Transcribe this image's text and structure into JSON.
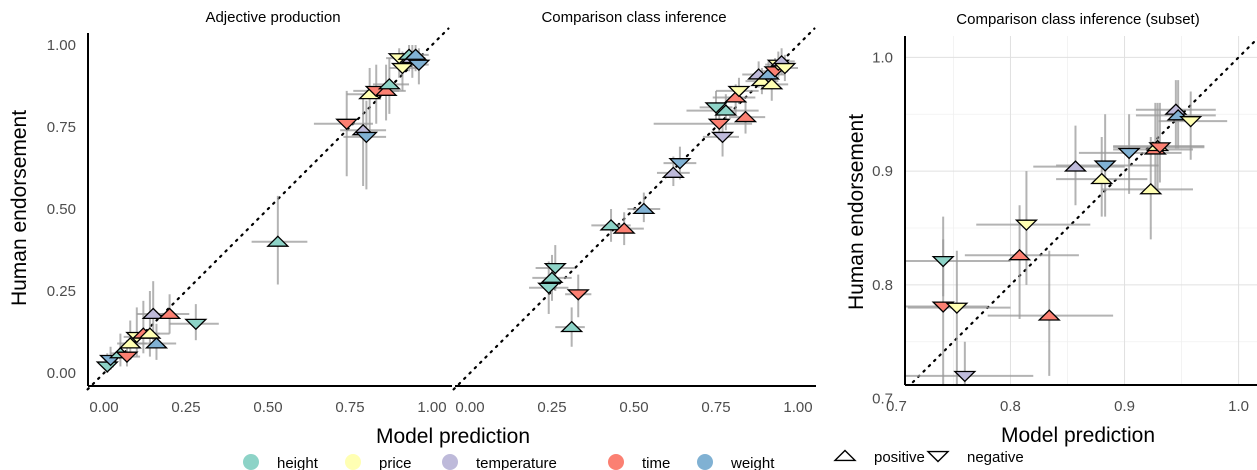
{
  "colors": {
    "height": "#8DD3C7",
    "price": "#FFFFB3",
    "temperature": "#BEBADA",
    "time": "#FB8072",
    "weight": "#80B1D3",
    "errorbar": "#999999"
  },
  "legend": {
    "colors": [
      {
        "label": "height",
        "color": "#8DD3C7"
      },
      {
        "label": "price",
        "color": "#FFFFB3"
      },
      {
        "label": "temperature",
        "color": "#BEBADA"
      },
      {
        "label": "time",
        "color": "#FB8072"
      },
      {
        "label": "weight",
        "color": "#80B1D3"
      }
    ],
    "shapes": [
      {
        "label": "positive",
        "shape": "triangle-up"
      },
      {
        "label": "negative",
        "shape": "triangle-down"
      }
    ]
  },
  "chart_data": [
    {
      "type": "scatter",
      "title": "Adjective production",
      "xlabel": "Model prediction",
      "ylabel": "Human endorsement",
      "xlim": [
        0,
        1
      ],
      "ylim": [
        0,
        1
      ],
      "xticks": [
        "0.00",
        "0.25",
        "0.50",
        "0.75",
        "1.00"
      ],
      "yticks": [
        "0.00",
        "0.25",
        "0.50",
        "0.75",
        "1.00"
      ],
      "grid": false,
      "diagonal": true,
      "points": [
        {
          "x": 0.01,
          "y": 0.02,
          "xerr": [
            0.0,
            0.03
          ],
          "yerr": [
            0.0,
            0.06
          ],
          "cat": "height",
          "pol": "negative"
        },
        {
          "x": 0.02,
          "y": 0.04,
          "xerr": [
            0.0,
            0.04
          ],
          "yerr": [
            0.01,
            0.08
          ],
          "cat": "weight",
          "pol": "negative"
        },
        {
          "x": 0.05,
          "y": 0.06,
          "xerr": [
            0.02,
            0.09
          ],
          "yerr": [
            0.02,
            0.12
          ],
          "cat": "height",
          "pol": "positive"
        },
        {
          "x": 0.07,
          "y": 0.05,
          "xerr": [
            0.04,
            0.11
          ],
          "yerr": [
            0.02,
            0.1
          ],
          "cat": "time",
          "pol": "negative"
        },
        {
          "x": 0.08,
          "y": 0.09,
          "xerr": [
            0.04,
            0.13
          ],
          "yerr": [
            0.04,
            0.16
          ],
          "cat": "price",
          "pol": "positive"
        },
        {
          "x": 0.1,
          "y": 0.11,
          "xerr": [
            0.06,
            0.15
          ],
          "yerr": [
            0.05,
            0.2
          ],
          "cat": "price",
          "pol": "negative"
        },
        {
          "x": 0.12,
          "y": 0.12,
          "xerr": [
            0.07,
            0.17
          ],
          "yerr": [
            0.06,
            0.22
          ],
          "cat": "time",
          "pol": "positive"
        },
        {
          "x": 0.14,
          "y": 0.12,
          "xerr": [
            0.08,
            0.2
          ],
          "yerr": [
            0.05,
            0.25
          ],
          "cat": "price",
          "pol": "positive"
        },
        {
          "x": 0.15,
          "y": 0.18,
          "xerr": [
            0.1,
            0.21
          ],
          "yerr": [
            0.1,
            0.28
          ],
          "cat": "temperature",
          "pol": "positive"
        },
        {
          "x": 0.16,
          "y": 0.09,
          "xerr": [
            0.1,
            0.22
          ],
          "yerr": [
            0.04,
            0.15
          ],
          "cat": "weight",
          "pol": "positive"
        },
        {
          "x": 0.2,
          "y": 0.18,
          "xerr": [
            0.14,
            0.26
          ],
          "yerr": [
            0.12,
            0.24
          ],
          "cat": "time",
          "pol": "positive"
        },
        {
          "x": 0.28,
          "y": 0.15,
          "xerr": [
            0.2,
            0.35
          ],
          "yerr": [
            0.1,
            0.21
          ],
          "cat": "height",
          "pol": "negative"
        },
        {
          "x": 0.53,
          "y": 0.4,
          "xerr": [
            0.45,
            0.62
          ],
          "yerr": [
            0.27,
            0.54
          ],
          "cat": "height",
          "pol": "positive"
        },
        {
          "x": 0.74,
          "y": 0.76,
          "xerr": [
            0.64,
            0.82
          ],
          "yerr": [
            0.6,
            0.86
          ],
          "cat": "time",
          "pol": "negative"
        },
        {
          "x": 0.79,
          "y": 0.74,
          "xerr": [
            0.72,
            0.86
          ],
          "yerr": [
            0.57,
            0.84
          ],
          "cat": "temperature",
          "pol": "positive"
        },
        {
          "x": 0.8,
          "y": 0.72,
          "xerr": [
            0.73,
            0.86
          ],
          "yerr": [
            0.56,
            0.83
          ],
          "cat": "weight",
          "pol": "negative"
        },
        {
          "x": 0.81,
          "y": 0.85,
          "xerr": [
            0.74,
            0.87
          ],
          "yerr": [
            0.74,
            0.93
          ],
          "cat": "price",
          "pol": "positive"
        },
        {
          "x": 0.83,
          "y": 0.86,
          "xerr": [
            0.76,
            0.9
          ],
          "yerr": [
            0.76,
            0.94
          ],
          "cat": "time",
          "pol": "negative"
        },
        {
          "x": 0.86,
          "y": 0.86,
          "xerr": [
            0.8,
            0.92
          ],
          "yerr": [
            0.77,
            0.94
          ],
          "cat": "time",
          "pol": "positive"
        },
        {
          "x": 0.87,
          "y": 0.88,
          "xerr": [
            0.82,
            0.93
          ],
          "yerr": [
            0.79,
            0.96
          ],
          "cat": "height",
          "pol": "positive"
        },
        {
          "x": 0.9,
          "y": 0.96,
          "xerr": [
            0.86,
            0.95
          ],
          "yerr": [
            0.9,
            0.99
          ],
          "cat": "price",
          "pol": "negative"
        },
        {
          "x": 0.91,
          "y": 0.93,
          "xerr": [
            0.87,
            0.96
          ],
          "yerr": [
            0.86,
            0.98
          ],
          "cat": "price",
          "pol": "negative"
        },
        {
          "x": 0.93,
          "y": 0.97,
          "xerr": [
            0.89,
            0.97
          ],
          "yerr": [
            0.92,
            1.0
          ],
          "cat": "height",
          "pol": "positive"
        },
        {
          "x": 0.94,
          "y": 0.96,
          "xerr": [
            0.9,
            0.98
          ],
          "yerr": [
            0.9,
            1.0
          ],
          "cat": "temperature",
          "pol": "positive"
        },
        {
          "x": 0.95,
          "y": 0.97,
          "xerr": [
            0.91,
            0.99
          ],
          "yerr": [
            0.92,
            1.0
          ],
          "cat": "weight",
          "pol": "positive"
        },
        {
          "x": 0.96,
          "y": 0.94,
          "xerr": [
            0.92,
            0.99
          ],
          "yerr": [
            0.88,
            0.99
          ],
          "cat": "weight",
          "pol": "negative"
        }
      ]
    },
    {
      "type": "scatter",
      "title": "Comparison class inference",
      "xlabel": "",
      "ylabel": "",
      "xlim": [
        0,
        1
      ],
      "ylim": [
        0,
        1
      ],
      "xticks": [
        "0.00",
        "0.25",
        "0.50",
        "0.75",
        "1.00"
      ],
      "yticks": [],
      "grid": false,
      "diagonal": true,
      "points": [
        {
          "x": 0.24,
          "y": 0.26,
          "xerr": [
            0.18,
            0.3
          ],
          "yerr": [
            0.18,
            0.34
          ],
          "cat": "height",
          "pol": "negative"
        },
        {
          "x": 0.25,
          "y": 0.29,
          "xerr": [
            0.19,
            0.31
          ],
          "yerr": [
            0.22,
            0.36
          ],
          "cat": "height",
          "pol": "positive"
        },
        {
          "x": 0.26,
          "y": 0.32,
          "xerr": [
            0.2,
            0.32
          ],
          "yerr": [
            0.25,
            0.39
          ],
          "cat": "height",
          "pol": "negative"
        },
        {
          "x": 0.31,
          "y": 0.14,
          "xerr": [
            0.26,
            0.35
          ],
          "yerr": [
            0.08,
            0.2
          ],
          "cat": "height",
          "pol": "positive"
        },
        {
          "x": 0.33,
          "y": 0.24,
          "xerr": [
            0.29,
            0.37
          ],
          "yerr": [
            0.17,
            0.3
          ],
          "cat": "time",
          "pol": "negative"
        },
        {
          "x": 0.43,
          "y": 0.45,
          "xerr": [
            0.37,
            0.49
          ],
          "yerr": [
            0.4,
            0.5
          ],
          "cat": "height",
          "pol": "positive"
        },
        {
          "x": 0.47,
          "y": 0.44,
          "xerr": [
            0.42,
            0.53
          ],
          "yerr": [
            0.39,
            0.49
          ],
          "cat": "time",
          "pol": "positive"
        },
        {
          "x": 0.53,
          "y": 0.5,
          "xerr": [
            0.48,
            0.58
          ],
          "yerr": [
            0.46,
            0.55
          ],
          "cat": "weight",
          "pol": "positive"
        },
        {
          "x": 0.62,
          "y": 0.61,
          "xerr": [
            0.57,
            0.67
          ],
          "yerr": [
            0.57,
            0.66
          ],
          "cat": "temperature",
          "pol": "positive"
        },
        {
          "x": 0.64,
          "y": 0.64,
          "xerr": [
            0.59,
            0.69
          ],
          "yerr": [
            0.59,
            0.69
          ],
          "cat": "weight",
          "pol": "negative"
        },
        {
          "x": 0.75,
          "y": 0.81,
          "xerr": [
            0.7,
            0.8
          ],
          "yerr": [
            0.76,
            0.86
          ],
          "cat": "height",
          "pol": "negative"
        },
        {
          "x": 0.76,
          "y": 0.76,
          "xerr": [
            0.56,
            0.86
          ],
          "yerr": [
            0.71,
            0.81
          ],
          "cat": "time",
          "pol": "negative"
        },
        {
          "x": 0.77,
          "y": 0.72,
          "xerr": [
            0.71,
            0.82
          ],
          "yerr": [
            0.66,
            0.77
          ],
          "cat": "temperature",
          "pol": "negative"
        },
        {
          "x": 0.78,
          "y": 0.8,
          "xerr": [
            0.66,
            0.88
          ],
          "yerr": [
            0.74,
            0.85
          ],
          "cat": "height",
          "pol": "positive"
        },
        {
          "x": 0.81,
          "y": 0.84,
          "xerr": [
            0.74,
            0.87
          ],
          "yerr": [
            0.79,
            0.88
          ],
          "cat": "time",
          "pol": "positive"
        },
        {
          "x": 0.82,
          "y": 0.86,
          "xerr": [
            0.75,
            0.88
          ],
          "yerr": [
            0.82,
            0.9
          ],
          "cat": "price",
          "pol": "negative"
        },
        {
          "x": 0.84,
          "y": 0.78,
          "xerr": [
            0.79,
            0.9
          ],
          "yerr": [
            0.73,
            0.83
          ],
          "cat": "time",
          "pol": "positive"
        },
        {
          "x": 0.88,
          "y": 0.91,
          "xerr": [
            0.83,
            0.93
          ],
          "yerr": [
            0.87,
            0.95
          ],
          "cat": "temperature",
          "pol": "positive"
        },
        {
          "x": 0.89,
          "y": 0.89,
          "xerr": [
            0.84,
            0.94
          ],
          "yerr": [
            0.85,
            0.93
          ],
          "cat": "price",
          "pol": "positive"
        },
        {
          "x": 0.91,
          "y": 0.91,
          "xerr": [
            0.86,
            0.96
          ],
          "yerr": [
            0.87,
            0.95
          ],
          "cat": "weight",
          "pol": "positive"
        },
        {
          "x": 0.92,
          "y": 0.88,
          "xerr": [
            0.87,
            0.97
          ],
          "yerr": [
            0.83,
            0.93
          ],
          "cat": "price",
          "pol": "positive"
        },
        {
          "x": 0.93,
          "y": 0.92,
          "xerr": [
            0.89,
            0.97
          ],
          "yerr": [
            0.88,
            0.96
          ],
          "cat": "time",
          "pol": "negative"
        },
        {
          "x": 0.94,
          "y": 0.94,
          "xerr": [
            0.9,
            0.98
          ],
          "yerr": [
            0.9,
            0.98
          ],
          "cat": "price",
          "pol": "negative"
        },
        {
          "x": 0.95,
          "y": 0.95,
          "xerr": [
            0.91,
            0.99
          ],
          "yerr": [
            0.91,
            0.99
          ],
          "cat": "temperature",
          "pol": "positive"
        },
        {
          "x": 0.96,
          "y": 0.93,
          "xerr": [
            0.92,
            1.0
          ],
          "yerr": [
            0.89,
            0.97
          ],
          "cat": "price",
          "pol": "negative"
        }
      ]
    },
    {
      "type": "scatter",
      "title": "Comparison class inference (subset)",
      "xlabel": "Model prediction",
      "ylabel": "Human endorsement",
      "xlim": [
        0.69,
        1.01
      ],
      "ylim": [
        0.69,
        1.01
      ],
      "xticks": [
        "0.7",
        "0.8",
        "0.9",
        "1.0"
      ],
      "yticks": [
        "0.7",
        "0.8",
        "0.9",
        "1.0"
      ],
      "grid": true,
      "diagonal": true,
      "points": [
        {
          "x": 0.741,
          "y": 0.821,
          "xerr": [
            0.7,
            0.8
          ],
          "yerr": [
            0.79,
            0.86
          ],
          "cat": "height",
          "pol": "negative"
        },
        {
          "x": 0.741,
          "y": 0.781,
          "xerr": [
            0.7,
            0.78
          ],
          "yerr": [
            0.7,
            0.84
          ],
          "cat": "time",
          "pol": "negative"
        },
        {
          "x": 0.753,
          "y": 0.78,
          "xerr": [
            0.71,
            0.8
          ],
          "yerr": [
            0.7,
            0.83
          ],
          "cat": "price",
          "pol": "negative"
        },
        {
          "x": 0.76,
          "y": 0.72,
          "xerr": [
            0.7,
            0.82
          ],
          "yerr": [
            0.7,
            0.75
          ],
          "cat": "temperature",
          "pol": "negative"
        },
        {
          "x": 0.808,
          "y": 0.826,
          "xerr": [
            0.76,
            0.86
          ],
          "yerr": [
            0.77,
            0.87
          ],
          "cat": "time",
          "pol": "positive"
        },
        {
          "x": 0.814,
          "y": 0.853,
          "xerr": [
            0.77,
            0.87
          ],
          "yerr": [
            0.8,
            0.9
          ],
          "cat": "price",
          "pol": "negative"
        },
        {
          "x": 0.834,
          "y": 0.773,
          "xerr": [
            0.78,
            0.89
          ],
          "yerr": [
            0.72,
            0.83
          ],
          "cat": "time",
          "pol": "positive"
        },
        {
          "x": 0.857,
          "y": 0.904,
          "xerr": [
            0.82,
            0.9
          ],
          "yerr": [
            0.87,
            0.94
          ],
          "cat": "temperature",
          "pol": "positive"
        },
        {
          "x": 0.88,
          "y": 0.893,
          "xerr": [
            0.84,
            0.92
          ],
          "yerr": [
            0.86,
            0.93
          ],
          "cat": "price",
          "pol": "positive"
        },
        {
          "x": 0.883,
          "y": 0.905,
          "xerr": [
            0.84,
            0.93
          ],
          "yerr": [
            0.86,
            0.95
          ],
          "cat": "weight",
          "pol": "negative"
        },
        {
          "x": 0.904,
          "y": 0.916,
          "xerr": [
            0.86,
            0.95
          ],
          "yerr": [
            0.88,
            0.95
          ],
          "cat": "weight",
          "pol": "negative"
        },
        {
          "x": 0.923,
          "y": 0.884,
          "xerr": [
            0.88,
            0.96
          ],
          "yerr": [
            0.84,
            0.93
          ],
          "cat": "price",
          "pol": "positive"
        },
        {
          "x": 0.927,
          "y": 0.919,
          "xerr": [
            0.89,
            0.96
          ],
          "yerr": [
            0.88,
            0.96
          ],
          "cat": "time",
          "pol": "positive"
        },
        {
          "x": 0.929,
          "y": 0.922,
          "xerr": [
            0.89,
            0.97
          ],
          "yerr": [
            0.88,
            0.96
          ],
          "cat": "price",
          "pol": "positive"
        },
        {
          "x": 0.931,
          "y": 0.921,
          "xerr": [
            0.89,
            0.97
          ],
          "yerr": [
            0.89,
            0.96
          ],
          "cat": "time",
          "pol": "negative"
        },
        {
          "x": 0.945,
          "y": 0.954,
          "xerr": [
            0.91,
            0.98
          ],
          "yerr": [
            0.92,
            0.98
          ],
          "cat": "temperature",
          "pol": "positive"
        },
        {
          "x": 0.947,
          "y": 0.949,
          "xerr": [
            0.91,
            0.98
          ],
          "yerr": [
            0.92,
            0.98
          ],
          "cat": "weight",
          "pol": "positive"
        },
        {
          "x": 0.958,
          "y": 0.944,
          "xerr": [
            0.93,
            0.99
          ],
          "yerr": [
            0.91,
            0.97
          ],
          "cat": "price",
          "pol": "negative"
        }
      ]
    }
  ]
}
